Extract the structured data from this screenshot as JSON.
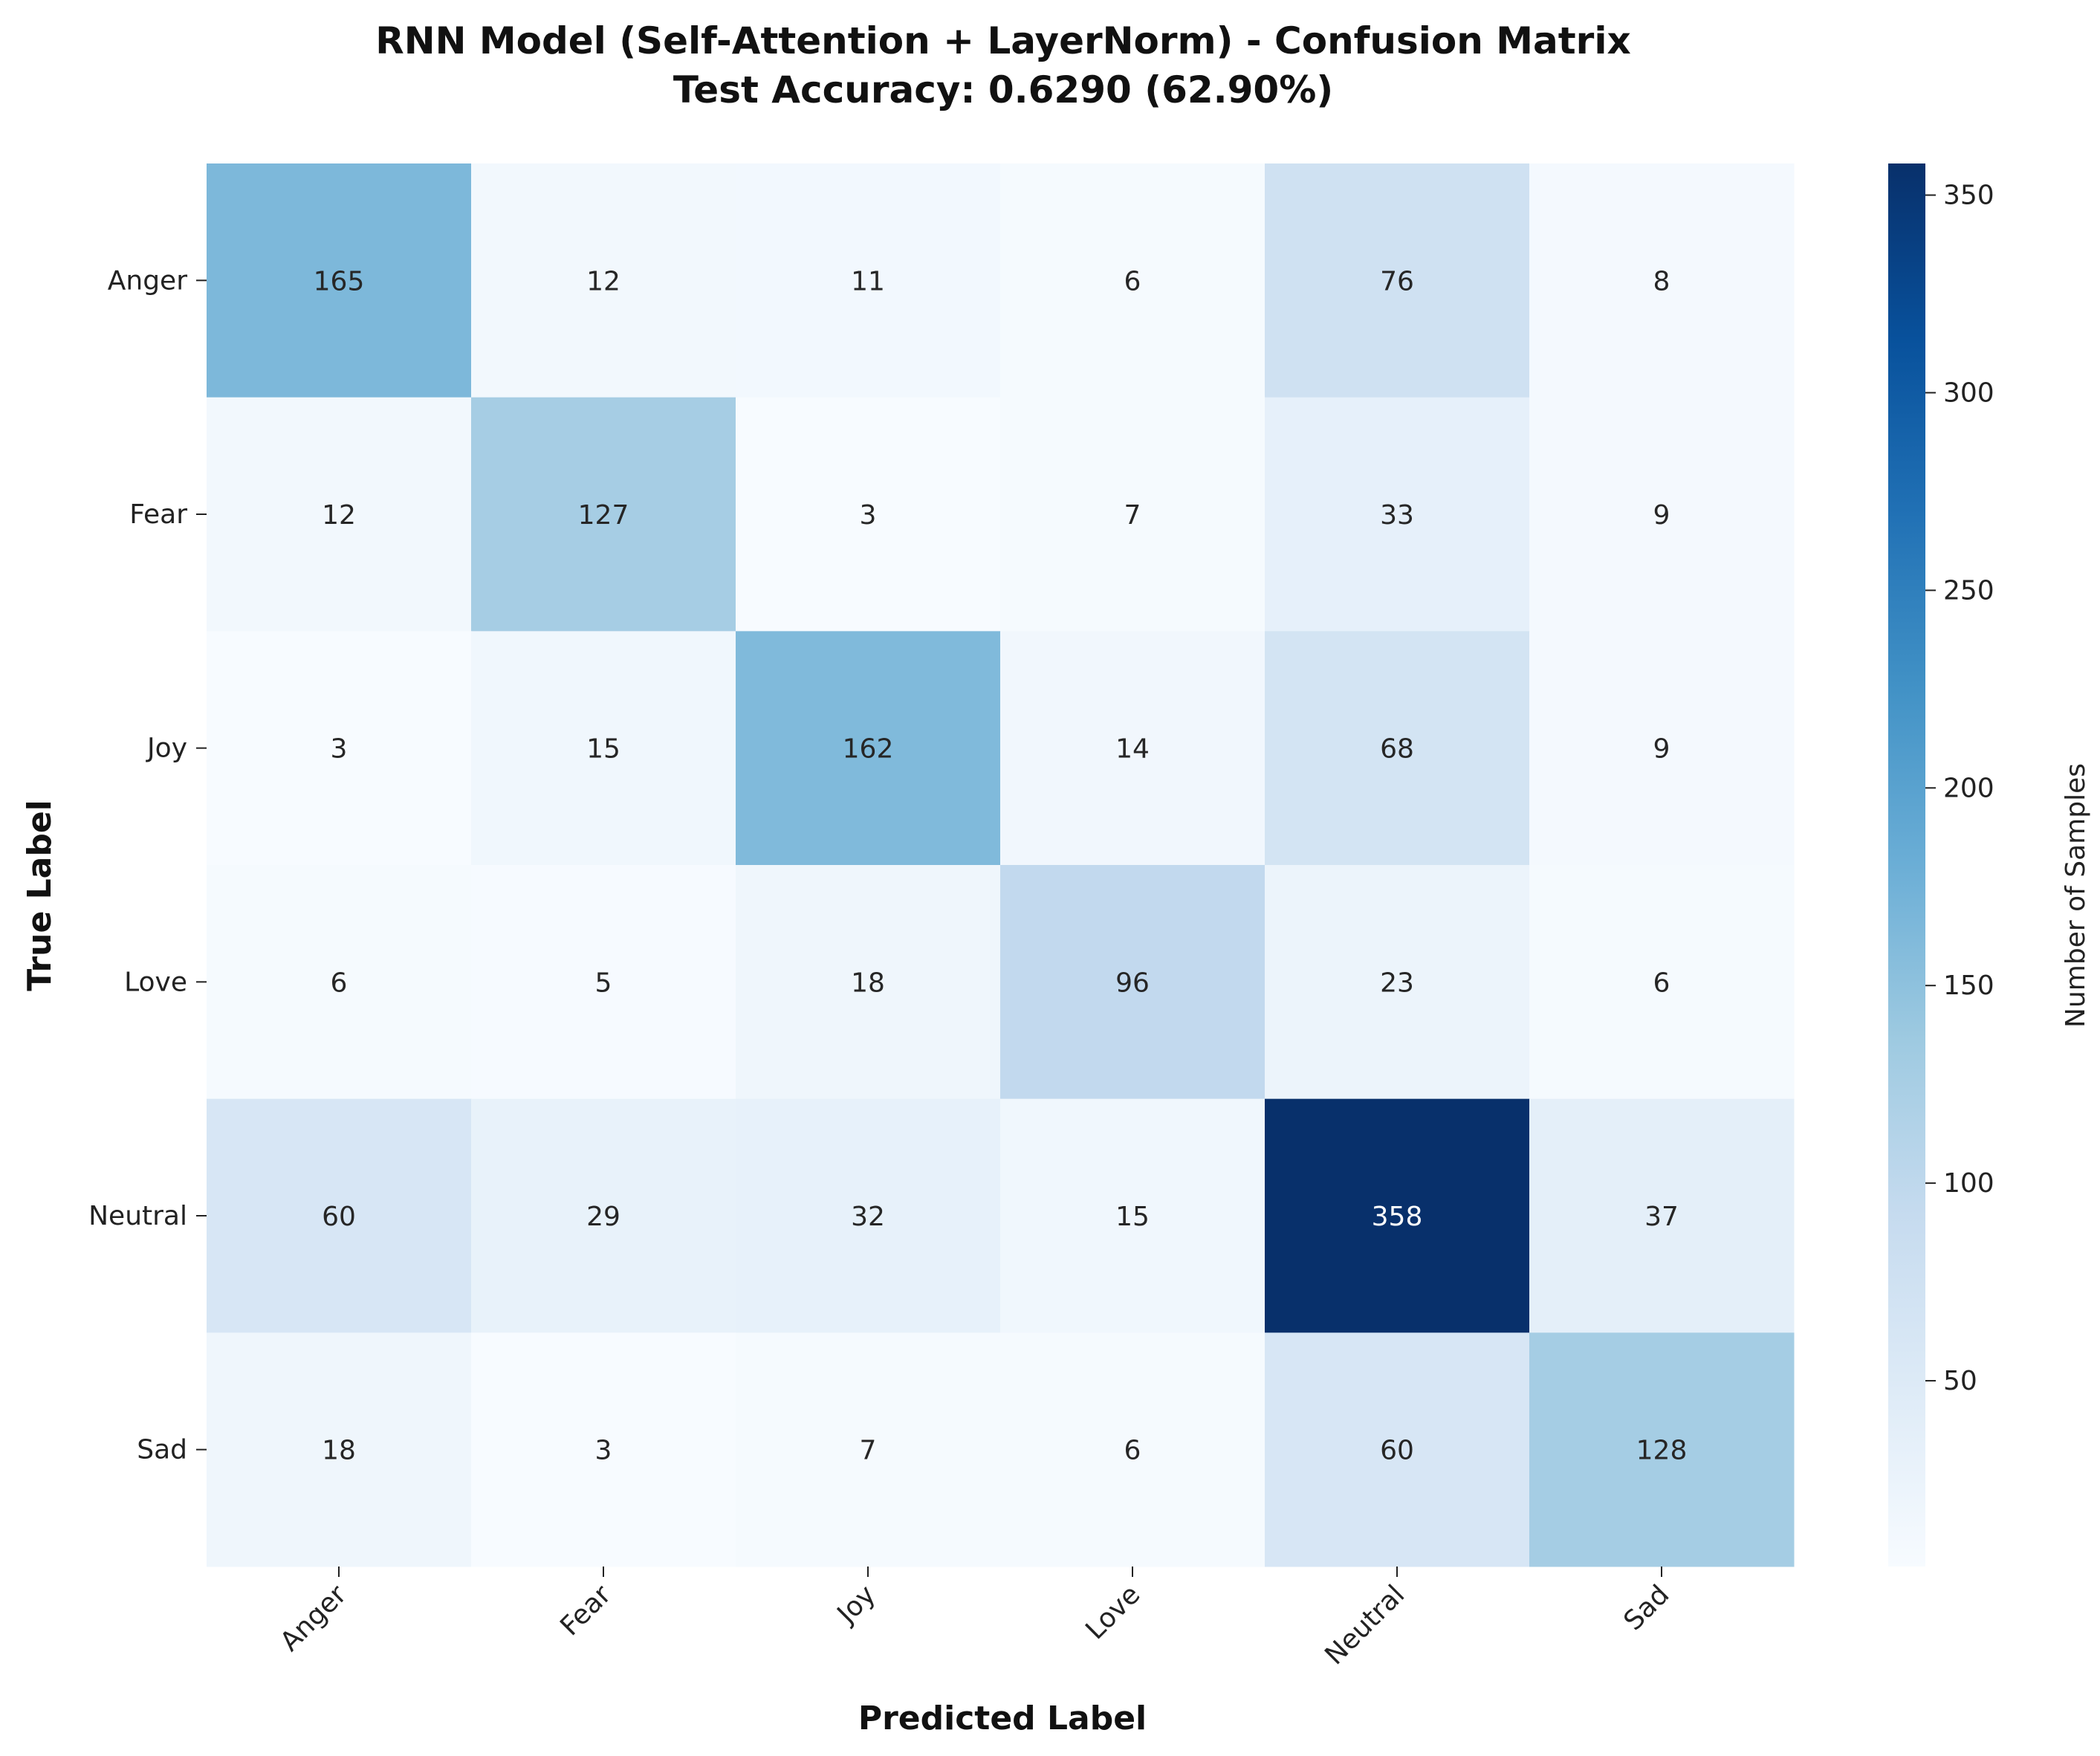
{
  "chart_data": {
    "type": "heatmap",
    "title": "RNN Model (Self-Attention + LayerNorm) - Confusion Matrix",
    "subtitle": "Test Accuracy: 0.6290 (62.90%)",
    "xlabel": "Predicted Label",
    "ylabel": "True Label",
    "x_categories": [
      "Anger",
      "Fear",
      "Joy",
      "Love",
      "Neutral",
      "Sad"
    ],
    "y_categories": [
      "Anger",
      "Fear",
      "Joy",
      "Love",
      "Neutral",
      "Sad"
    ],
    "values": [
      [
        165,
        12,
        11,
        6,
        76,
        8
      ],
      [
        12,
        127,
        3,
        7,
        33,
        9
      ],
      [
        3,
        15,
        162,
        14,
        68,
        9
      ],
      [
        6,
        5,
        18,
        96,
        23,
        6
      ],
      [
        60,
        29,
        32,
        15,
        358,
        37
      ],
      [
        18,
        3,
        7,
        6,
        60,
        128
      ]
    ],
    "colorbar": {
      "label": "Number of Samples",
      "range": [
        3,
        358
      ],
      "ticks": [
        50,
        100,
        150,
        200,
        250,
        300,
        350
      ],
      "colormap": "Blues",
      "colors": [
        "#f7fbff",
        "#deebf7",
        "#c6dbef",
        "#9ecae1",
        "#6baed6",
        "#4292c6",
        "#2171b5",
        "#08519c",
        "#08306b"
      ]
    },
    "grid": false
  }
}
